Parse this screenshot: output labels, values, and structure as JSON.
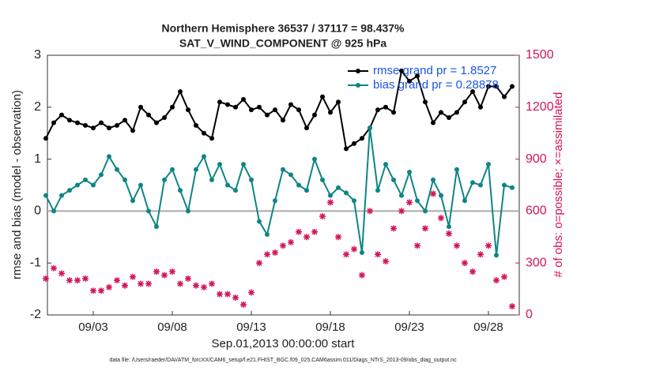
{
  "chart_data": {
    "type": "line",
    "title": "Northern Hemisphere 36537 / 37117 = 98.437%",
    "subtitle": "SAT_V_WIND_COMPONENT @ 925 hPa",
    "xlabel": "Sep.01,2013 00:00:00 start",
    "ylabel": "rmse and bias (model - observation)",
    "y2label": "# of obs: o=possible; ×=assimilated",
    "footnote": "data file: /Users/raeder/DAI/ATM_forcXX/CAM6_setup/f.e21.FHIST_BGC.f09_025.CAM6assim.011/Diags_NTrS_2013-09/obs_diag_output.nc",
    "x": [
      -1,
      -0.5,
      0,
      0.5,
      1,
      1.5,
      2,
      2.5,
      3,
      3.5,
      4,
      4.5,
      5,
      5.5,
      6,
      6.5,
      7,
      7.5,
      8,
      8.5,
      9,
      9.5,
      10,
      10.5,
      11,
      11.5,
      12,
      12.5,
      13,
      13.5,
      14,
      14.5,
      15,
      15.5,
      16,
      16.5,
      17,
      17.5,
      18,
      18.5,
      19,
      19.5,
      20,
      20.5,
      21,
      21.5,
      22,
      22.5,
      23,
      23.5,
      24,
      24.5,
      25,
      25.5,
      26,
      26.5,
      27,
      27.5,
      28,
      28.5
    ],
    "xlim": [
      -0.9,
      28.95
    ],
    "xticks": [
      {
        "value": 2,
        "label": "09/03"
      },
      {
        "value": 7,
        "label": "09/08"
      },
      {
        "value": 12,
        "label": "09/13"
      },
      {
        "value": 17,
        "label": "09/18"
      },
      {
        "value": 22,
        "label": "09/23"
      },
      {
        "value": 27,
        "label": "09/28"
      }
    ],
    "ylim": [
      -2,
      3
    ],
    "yticks": [
      -2,
      -1,
      0,
      1,
      2,
      3
    ],
    "y2lim": [
      0,
      1500
    ],
    "y2ticks": [
      0,
      300,
      600,
      900,
      1200,
      1500
    ],
    "series": [
      {
        "name": "rmse grand pr = 1.8527",
        "color": "#000000",
        "values": [
          1.4,
          1.7,
          1.85,
          1.75,
          1.7,
          1.65,
          1.6,
          1.7,
          1.6,
          1.65,
          1.75,
          1.55,
          2.0,
          1.85,
          1.7,
          1.8,
          2.0,
          2.3,
          1.95,
          1.65,
          1.5,
          1.4,
          2.1,
          2.05,
          2.0,
          2.15,
          1.95,
          2.0,
          1.85,
          1.95,
          1.75,
          2.05,
          1.95,
          1.6,
          1.85,
          2.2,
          1.9,
          2.1,
          1.2,
          1.3,
          1.4,
          1.6,
          1.95,
          2.0,
          1.9,
          2.7,
          2.5,
          2.6,
          2.1,
          1.7,
          1.9,
          1.8,
          1.9,
          2.1,
          2.3,
          2.0,
          2.4,
          2.4,
          2.2,
          2.4
        ]
      },
      {
        "name": "bias grand pr = 0.28878",
        "color": "#0f8585",
        "values": [
          0.3,
          0.0,
          0.3,
          0.4,
          0.5,
          0.6,
          0.5,
          0.7,
          1.05,
          0.8,
          0.6,
          0.2,
          0.5,
          0.0,
          -0.3,
          0.6,
          0.8,
          0.4,
          0.0,
          0.8,
          1.05,
          0.6,
          0.9,
          0.5,
          0.4,
          0.9,
          0.6,
          -0.2,
          -0.45,
          0.2,
          0.8,
          0.7,
          0.5,
          0.4,
          1.0,
          0.6,
          0.3,
          0.45,
          0.35,
          0.2,
          -0.8,
          1.6,
          0.4,
          0.9,
          0.6,
          0.3,
          0.75,
          0.2,
          0.0,
          0.6,
          0.3,
          -0.3,
          0.8,
          0.2,
          0.55,
          0.5,
          0.9,
          -0.85,
          0.5,
          0.45
        ]
      },
      {
        "color": "#d4145a",
        "axis": "y2",
        "values": [
          210,
          270,
          240,
          200,
          200,
          210,
          140,
          140,
          160,
          200,
          170,
          220,
          180,
          180,
          250,
          230,
          250,
          180,
          210,
          170,
          160,
          180,
          120,
          120,
          100,
          60,
          130,
          300,
          350,
          360,
          400,
          420,
          480,
          450,
          480,
          570,
          650,
          450,
          350,
          380,
          230,
          600,
          350,
          310,
          500,
          600,
          650,
          400,
          500,
          700,
          560,
          470,
          400,
          300,
          250,
          350,
          400,
          200,
          220,
          50
        ]
      }
    ],
    "legend_color": "#1a55e6",
    "zero_line": true
  }
}
